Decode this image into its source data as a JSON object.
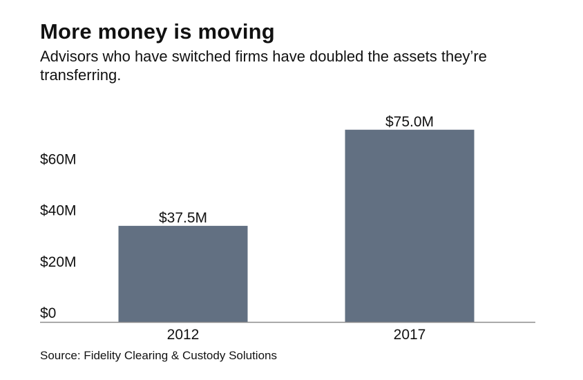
{
  "title": "More money is moving",
  "subtitle": "Advisors who have switched firms have doubled the assets they’re transferring.",
  "source": "Source: Fidelity Clearing & Custody Solutions",
  "colors": {
    "bar": "#627082",
    "axis": "#8a8a8a",
    "text": "#111111"
  },
  "chart_data": {
    "type": "bar",
    "categories": [
      "2012",
      "2017"
    ],
    "values": [
      37.5,
      75.0
    ],
    "value_labels": [
      "$37.5M",
      "$75.0M"
    ],
    "y_ticks": [
      0,
      20,
      40,
      60
    ],
    "y_tick_labels": [
      "$0",
      "$20M",
      "$40M",
      "$60M"
    ],
    "ylim": [
      0,
      75
    ],
    "grid": false,
    "legend": "none"
  }
}
